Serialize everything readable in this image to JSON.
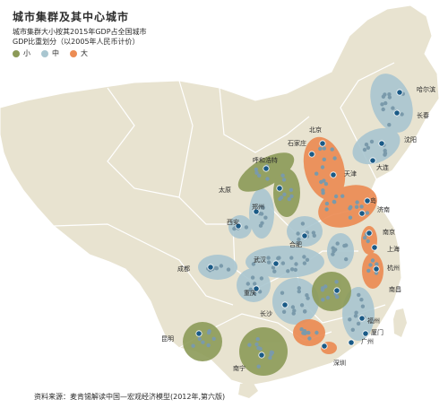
{
  "title": "城市集群及其中心城市",
  "subtitle_line1": "城市集群大小按其2015年GDP占全国城市",
  "subtitle_line2": "GDP比重划分（以2005年人民币计价）",
  "legend": [
    {
      "label": "小",
      "color": "#8c9a58"
    },
    {
      "label": "中",
      "color": "#a9c6d0"
    },
    {
      "label": "大",
      "color": "#ec8c54"
    }
  ],
  "colors": {
    "land": "#e8e3d0",
    "border": "#ffffff",
    "center": "#1a5a86",
    "small_dot": "#7a9aab"
  },
  "city_labels": {
    "harbin": "哈尔滨",
    "changchun": "长春",
    "shenyang": "沈阳",
    "dalian": "大连",
    "beijing": "北京",
    "shijiazhuang": "石家庄",
    "tianjin": "天津",
    "huhehaote": "呼和浩特",
    "taiyuan": "太原",
    "jinan": "济南",
    "qingdao": "岛",
    "zhengzhou": "郑州",
    "xian": "西安",
    "hefei": "合肥",
    "nanjing": "南京",
    "shanghai": "上海",
    "hangzhou": "杭州",
    "wuhan": "武汉",
    "chengdu": "成都",
    "chongqing": "重庆",
    "nanchang": "南昌",
    "changsha": "长沙",
    "fuzhou": "福州",
    "xiamen": "厦门",
    "guangzhou": "广州",
    "shenzhen": "深圳",
    "kunming": "昆明",
    "nanning": "南宁"
  },
  "source": "资料来源：麦肯锡解读中国—宏观经济模型(2012年,第六版)"
}
